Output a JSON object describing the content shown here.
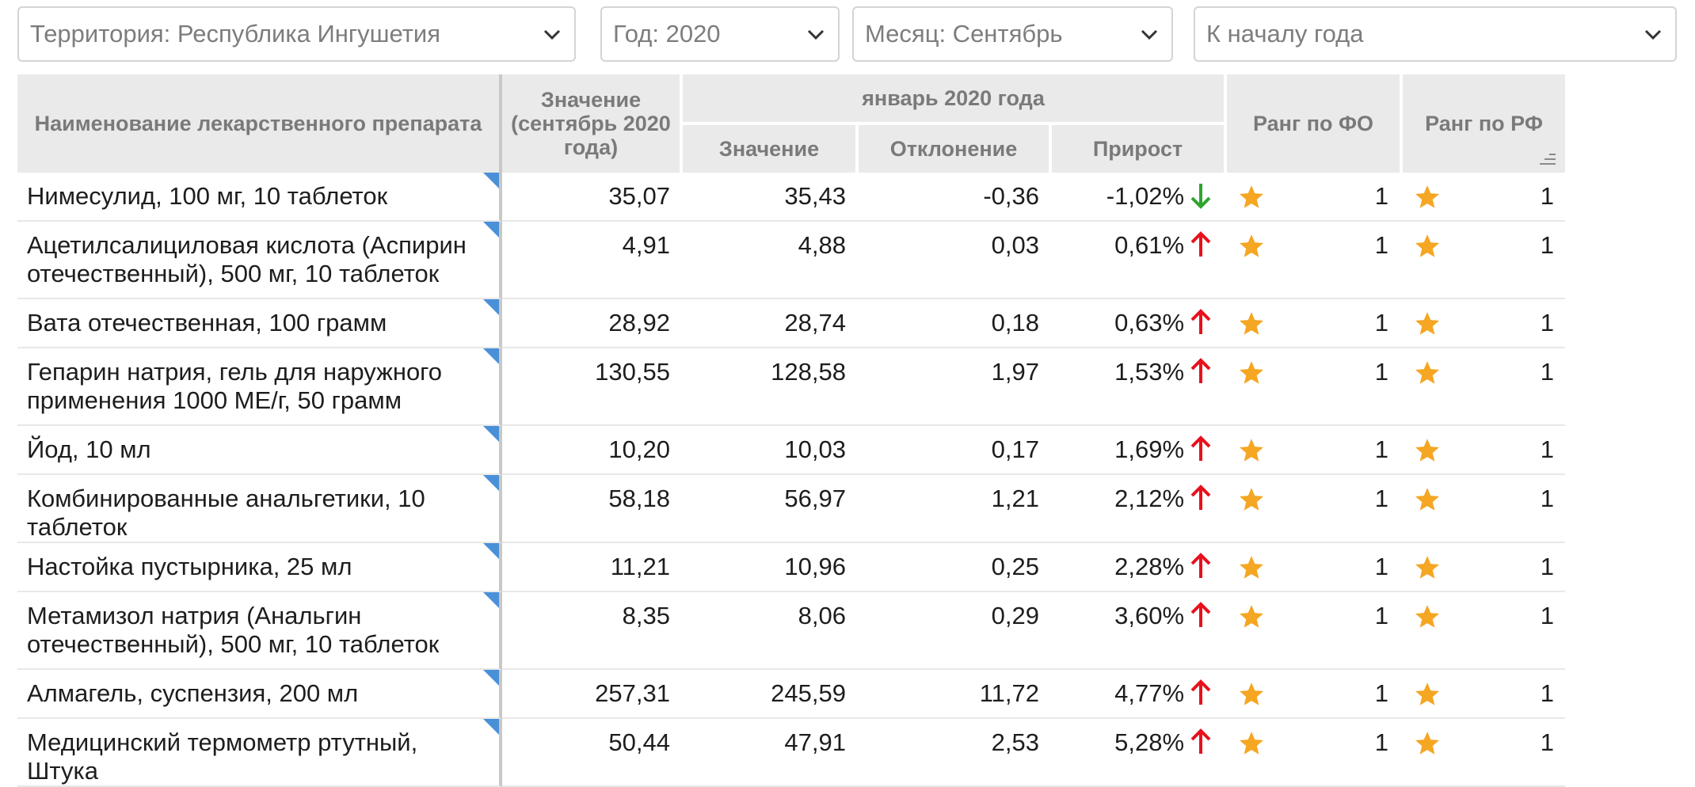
{
  "filters": {
    "territory": "Территория: Республика Ингушетия",
    "year": "Год: 2020",
    "month": "Месяц: Сентябрь",
    "period": "К началу года"
  },
  "colors": {
    "up_arrow": "#e8101c",
    "down_arrow": "#2ea52e",
    "star": "#f5a623",
    "corner_marker": "#4a90d9",
    "header_bg": "#eaeaea"
  },
  "table": {
    "headers": {
      "name": "Наименование лекарственного препарата",
      "value_current": "Значение (сентябрь 2020 года)",
      "group_base": "январь 2020 года",
      "value_base": "Значение",
      "deviation": "Отклонение",
      "growth": "Прирост",
      "rank_fo": "Ранг по ФО",
      "rank_rf": "Ранг по РФ"
    },
    "rows": [
      {
        "name": "Нимесулид, 100 мг, 10 таблеток",
        "value": "35,07",
        "base": "35,43",
        "dev": "-0,36",
        "growth": "-1,02%",
        "trend": "down",
        "rank_fo": "1",
        "rank_rf": "1"
      },
      {
        "name": "Ацетилсалициловая кислота (Аспирин отечественный), 500 мг, 10 таблеток",
        "value": "4,91",
        "base": "4,88",
        "dev": "0,03",
        "growth": "0,61%",
        "trend": "up",
        "rank_fo": "1",
        "rank_rf": "1"
      },
      {
        "name": "Вата отечественная, 100 грамм",
        "value": "28,92",
        "base": "28,74",
        "dev": "0,18",
        "growth": "0,63%",
        "trend": "up",
        "rank_fo": "1",
        "rank_rf": "1"
      },
      {
        "name": "Гепарин натрия, гель для наружного применения 1000 МЕ/г, 50 грамм",
        "value": "130,55",
        "base": "128,58",
        "dev": "1,97",
        "growth": "1,53%",
        "trend": "up",
        "rank_fo": "1",
        "rank_rf": "1"
      },
      {
        "name": "Йод, 10 мл",
        "value": "10,20",
        "base": "10,03",
        "dev": "0,17",
        "growth": "1,69%",
        "trend": "up",
        "rank_fo": "1",
        "rank_rf": "1"
      },
      {
        "name": "Комбинированные анальгетики, 10 таблеток",
        "value": "58,18",
        "base": "56,97",
        "dev": "1,21",
        "growth": "2,12%",
        "trend": "up",
        "rank_fo": "1",
        "rank_rf": "1"
      },
      {
        "name": "Настойка пустырника, 25 мл",
        "value": "11,21",
        "base": "10,96",
        "dev": "0,25",
        "growth": "2,28%",
        "trend": "up",
        "rank_fo": "1",
        "rank_rf": "1"
      },
      {
        "name": "Метамизол натрия (Анальгин отечественный), 500 мг, 10 таблеток",
        "value": "8,35",
        "base": "8,06",
        "dev": "0,29",
        "growth": "3,60%",
        "trend": "up",
        "rank_fo": "1",
        "rank_rf": "1"
      },
      {
        "name": "Алмагель, суспензия, 200 мл",
        "value": "257,31",
        "base": "245,59",
        "dev": "11,72",
        "growth": "4,77%",
        "trend": "up",
        "rank_fo": "1",
        "rank_rf": "1"
      },
      {
        "name": "Медицинский термометр ртутный, Штука",
        "value": "50,44",
        "base": "47,91",
        "dev": "2,53",
        "growth": "5,28%",
        "trend": "up",
        "rank_fo": "1",
        "rank_rf": "1"
      }
    ]
  }
}
